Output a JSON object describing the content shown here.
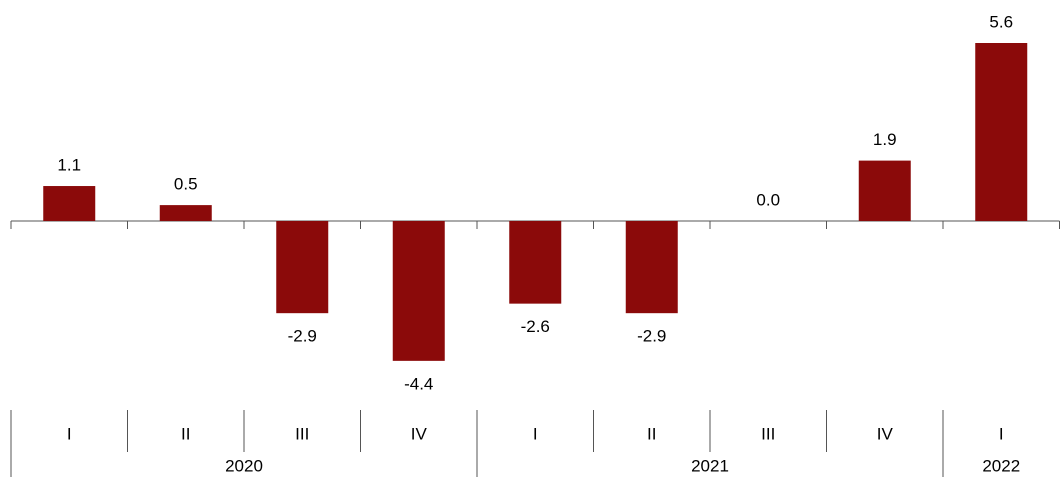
{
  "chart_data": {
    "type": "bar",
    "groups": [
      {
        "label": "2020",
        "categories": [
          "I",
          "II",
          "III",
          "IV"
        ]
      },
      {
        "label": "2021",
        "categories": [
          "I",
          "II",
          "III",
          "IV"
        ]
      },
      {
        "label": "2022",
        "categories": [
          "I"
        ]
      }
    ],
    "values": [
      1.1,
      0.5,
      -2.9,
      -4.4,
      -2.6,
      -2.9,
      0,
      1.9,
      5.6
    ],
    "value_labels": [
      "1.1",
      "0.5",
      "-2.9",
      "-4.4",
      "-2.6",
      "-2.9",
      "0.0",
      "1.9",
      "5.6"
    ],
    "color": "#8b0a0a"
  }
}
